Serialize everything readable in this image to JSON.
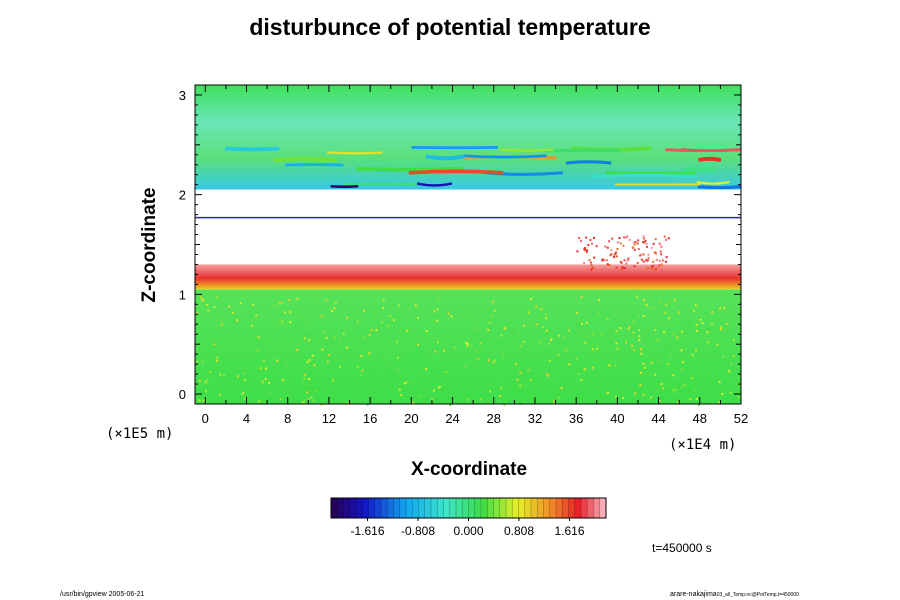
{
  "chart_data": {
    "type": "heatmap",
    "title": "disturbunce of potential temperature",
    "xlabel": "X-coordinate",
    "ylabel": "Z-coordinate",
    "x_unit": "(×1E4 m)",
    "y_unit": "(×1E5 m)",
    "xlim": [
      -1,
      52
    ],
    "ylim": [
      -0.1,
      3.1
    ],
    "x_ticks": [
      0,
      4,
      8,
      12,
      16,
      20,
      24,
      28,
      32,
      36,
      40,
      44,
      48,
      52
    ],
    "y_ticks": [
      0,
      1,
      2,
      3
    ],
    "colorbar": {
      "min": -2.2,
      "max": 2.2,
      "tick_values": [
        -1.616,
        -0.808,
        0.0,
        0.808,
        1.616
      ],
      "tick_labels": [
        "-1.616",
        "-0.808",
        "0.000",
        "0.808",
        "1.616"
      ]
    },
    "bands": [
      {
        "region": "lower layer",
        "z_range": [
          -0.1,
          1.05
        ],
        "value": 0.45
      },
      {
        "region": "strong positive layer",
        "z_range": [
          1.05,
          1.3
        ],
        "value": 1.7
      },
      {
        "region": "undefined (blank)",
        "z_range": [
          1.3,
          1.75
        ],
        "value": null
      },
      {
        "region": "undefined (blank)",
        "z_range": [
          1.8,
          2.05
        ],
        "value": null
      },
      {
        "region": "upper layer",
        "z_range": [
          2.05,
          3.1
        ],
        "value": 0.3
      }
    ],
    "annotation": "t=450000 s"
  },
  "footer": {
    "left": "/usr/bin/gpview 2005-06-21",
    "right": "arare-nakajima",
    "right_sub": "03_all_Temp.nc@PotTemp,t=450000"
  },
  "colors": {
    "background": "#ffffff",
    "frame": "#000000"
  }
}
